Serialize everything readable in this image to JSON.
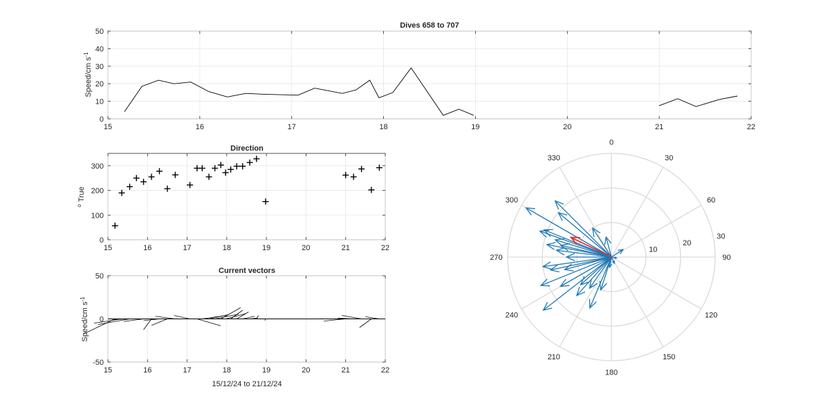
{
  "chart_data": [
    {
      "id": "speed",
      "type": "line",
      "title": "Dives 658 to 707",
      "ylabel": "Speed/cm s",
      "ylabel_sup": "-1",
      "xlim": [
        15,
        22
      ],
      "ylim": [
        0,
        50
      ],
      "xticks": [
        15,
        16,
        17,
        18,
        19,
        20,
        21,
        22
      ],
      "yticks": [
        0,
        10,
        20,
        30,
        40,
        50
      ],
      "grid": true,
      "segments": [
        {
          "x": [
            15.18,
            15.37,
            15.55,
            15.72,
            15.9,
            16.1,
            16.3,
            16.5,
            16.7,
            17.07,
            17.25,
            17.55,
            17.7,
            17.85,
            17.95,
            18.1,
            18.3,
            18.65,
            18.82,
            18.98
          ],
          "y": [
            4,
            18.5,
            22,
            20,
            21,
            15.5,
            12.5,
            14.5,
            14,
            13.5,
            17.5,
            14.5,
            16.5,
            22,
            12,
            15,
            29,
            2,
            5.5,
            2
          ]
        },
        {
          "x": [
            21.0,
            21.2,
            21.4,
            21.65,
            21.85
          ],
          "y": [
            7.5,
            11.5,
            7,
            11,
            13
          ]
        }
      ]
    },
    {
      "id": "direction",
      "type": "scatter",
      "marker": "+",
      "title": "Direction",
      "ylabel": "True",
      "ylabel_sup": "o",
      "xlim": [
        15,
        22
      ],
      "ylim": [
        0,
        350
      ],
      "xticks": [
        15,
        16,
        17,
        18,
        19,
        20,
        21,
        22
      ],
      "yticks": [
        0,
        100,
        200,
        300
      ],
      "grid": true,
      "x": [
        15.18,
        15.35,
        15.55,
        15.72,
        15.9,
        16.1,
        16.3,
        16.5,
        16.7,
        17.07,
        17.25,
        17.38,
        17.55,
        17.7,
        17.85,
        17.97,
        18.1,
        18.25,
        18.4,
        18.58,
        18.75,
        18.98,
        21.0,
        21.2,
        21.4,
        21.65,
        21.85
      ],
      "y": [
        57,
        190,
        215,
        250,
        235,
        255,
        278,
        207,
        263,
        222,
        290,
        290,
        255,
        290,
        303,
        272,
        285,
        298,
        298,
        313,
        328,
        155,
        262,
        255,
        287,
        202,
        292
      ]
    },
    {
      "id": "vectors",
      "type": "vector",
      "title": "Current vectors",
      "ylabel": "Speed/cm s",
      "ylabel_sup": "-1",
      "xlabel": "15/12/24 to 21/12/24",
      "xlim": [
        15,
        22
      ],
      "ylim": [
        -50,
        50
      ],
      "xticks": [
        15,
        16,
        17,
        18,
        19,
        20,
        21,
        22
      ],
      "yticks": [
        -50,
        0,
        50
      ],
      "grid": true,
      "vectors": [
        {
          "t": 15.18,
          "u": -0.8,
          "v": -17.5
        },
        {
          "t": 15.35,
          "u": -0.7,
          "v": -5
        },
        {
          "t": 15.55,
          "u": -0.8,
          "v": -6.5
        },
        {
          "t": 15.72,
          "u": -0.6,
          "v": -0.5
        },
        {
          "t": 15.9,
          "u": -0.5,
          "v": -3
        },
        {
          "t": 16.1,
          "u": -0.2,
          "v": -12.5
        },
        {
          "t": 16.3,
          "u": -0.4,
          "v": -2
        },
        {
          "t": 16.5,
          "u": -0.4,
          "v": -7.5
        },
        {
          "t": 16.7,
          "u": -0.5,
          "v": 3
        },
        {
          "t": 17.07,
          "u": -0.4,
          "v": 4
        },
        {
          "t": 17.25,
          "u": 0.6,
          "v": -8
        },
        {
          "t": 17.38,
          "u": 0.6,
          "v": 4
        },
        {
          "t": 17.55,
          "u": 0.5,
          "v": 5
        },
        {
          "t": 17.7,
          "u": 0.6,
          "v": 5.5
        },
        {
          "t": 17.85,
          "u": 0.5,
          "v": 13
        },
        {
          "t": 17.97,
          "u": 0.5,
          "v": 6
        },
        {
          "t": 18.1,
          "u": 0.3,
          "v": 10
        },
        {
          "t": 18.25,
          "u": 0.3,
          "v": 8
        },
        {
          "t": 18.4,
          "u": 0.3,
          "v": 3
        },
        {
          "t": 18.58,
          "u": 0.2,
          "v": 1
        },
        {
          "t": 18.75,
          "u": 0.05,
          "v": 4
        },
        {
          "t": 18.98,
          "u": -0.02,
          "v": -2
        },
        {
          "t": 21.0,
          "u": -0.55,
          "v": -2.5
        },
        {
          "t": 21.2,
          "u": -0.4,
          "v": 1
        },
        {
          "t": 21.4,
          "u": -0.5,
          "v": 4
        },
        {
          "t": 21.65,
          "u": -0.3,
          "v": -10
        },
        {
          "t": 21.85,
          "u": -0.35,
          "v": 2.5
        }
      ]
    },
    {
      "id": "polar",
      "type": "compass",
      "rlim": [
        0,
        30
      ],
      "rticks": [
        10,
        20,
        30
      ],
      "theta_ticks": [
        0,
        30,
        60,
        90,
        120,
        150,
        180,
        210,
        240,
        270,
        300,
        330
      ],
      "theta_zero": "top",
      "theta_direction": "clockwise",
      "series_color": "#1f77b4",
      "mean_color": "#e03030",
      "arrows": [
        {
          "dir": 300,
          "speed": 28.5
        },
        {
          "dir": 310,
          "speed": 20
        },
        {
          "dir": 315,
          "speed": 23
        },
        {
          "dir": 290,
          "speed": 22
        },
        {
          "dir": 292,
          "speed": 21
        },
        {
          "dir": 287,
          "speed": 17
        },
        {
          "dir": 283,
          "speed": 15
        },
        {
          "dir": 281,
          "speed": 19
        },
        {
          "dir": 277,
          "speed": 16
        },
        {
          "dir": 270,
          "speed": 13
        },
        {
          "dir": 262,
          "speed": 20
        },
        {
          "dir": 258,
          "speed": 18
        },
        {
          "dir": 255,
          "speed": 14
        },
        {
          "dir": 248,
          "speed": 22
        },
        {
          "dir": 240,
          "speed": 17
        },
        {
          "dir": 232,
          "speed": 25
        },
        {
          "dir": 228,
          "speed": 12
        },
        {
          "dir": 222,
          "speed": 15
        },
        {
          "dir": 215,
          "speed": 11
        },
        {
          "dir": 203,
          "speed": 16
        },
        {
          "dir": 198,
          "speed": 10
        },
        {
          "dir": 190,
          "speed": 3
        },
        {
          "dir": 327,
          "speed": 10
        },
        {
          "dir": 345,
          "speed": 6
        },
        {
          "dir": 57,
          "speed": 4
        },
        {
          "dir": 155,
          "speed": 2
        },
        {
          "dir": 100,
          "speed": 1.5
        }
      ],
      "mean_arrow": {
        "dir": 296,
        "speed": 13
      }
    }
  ]
}
